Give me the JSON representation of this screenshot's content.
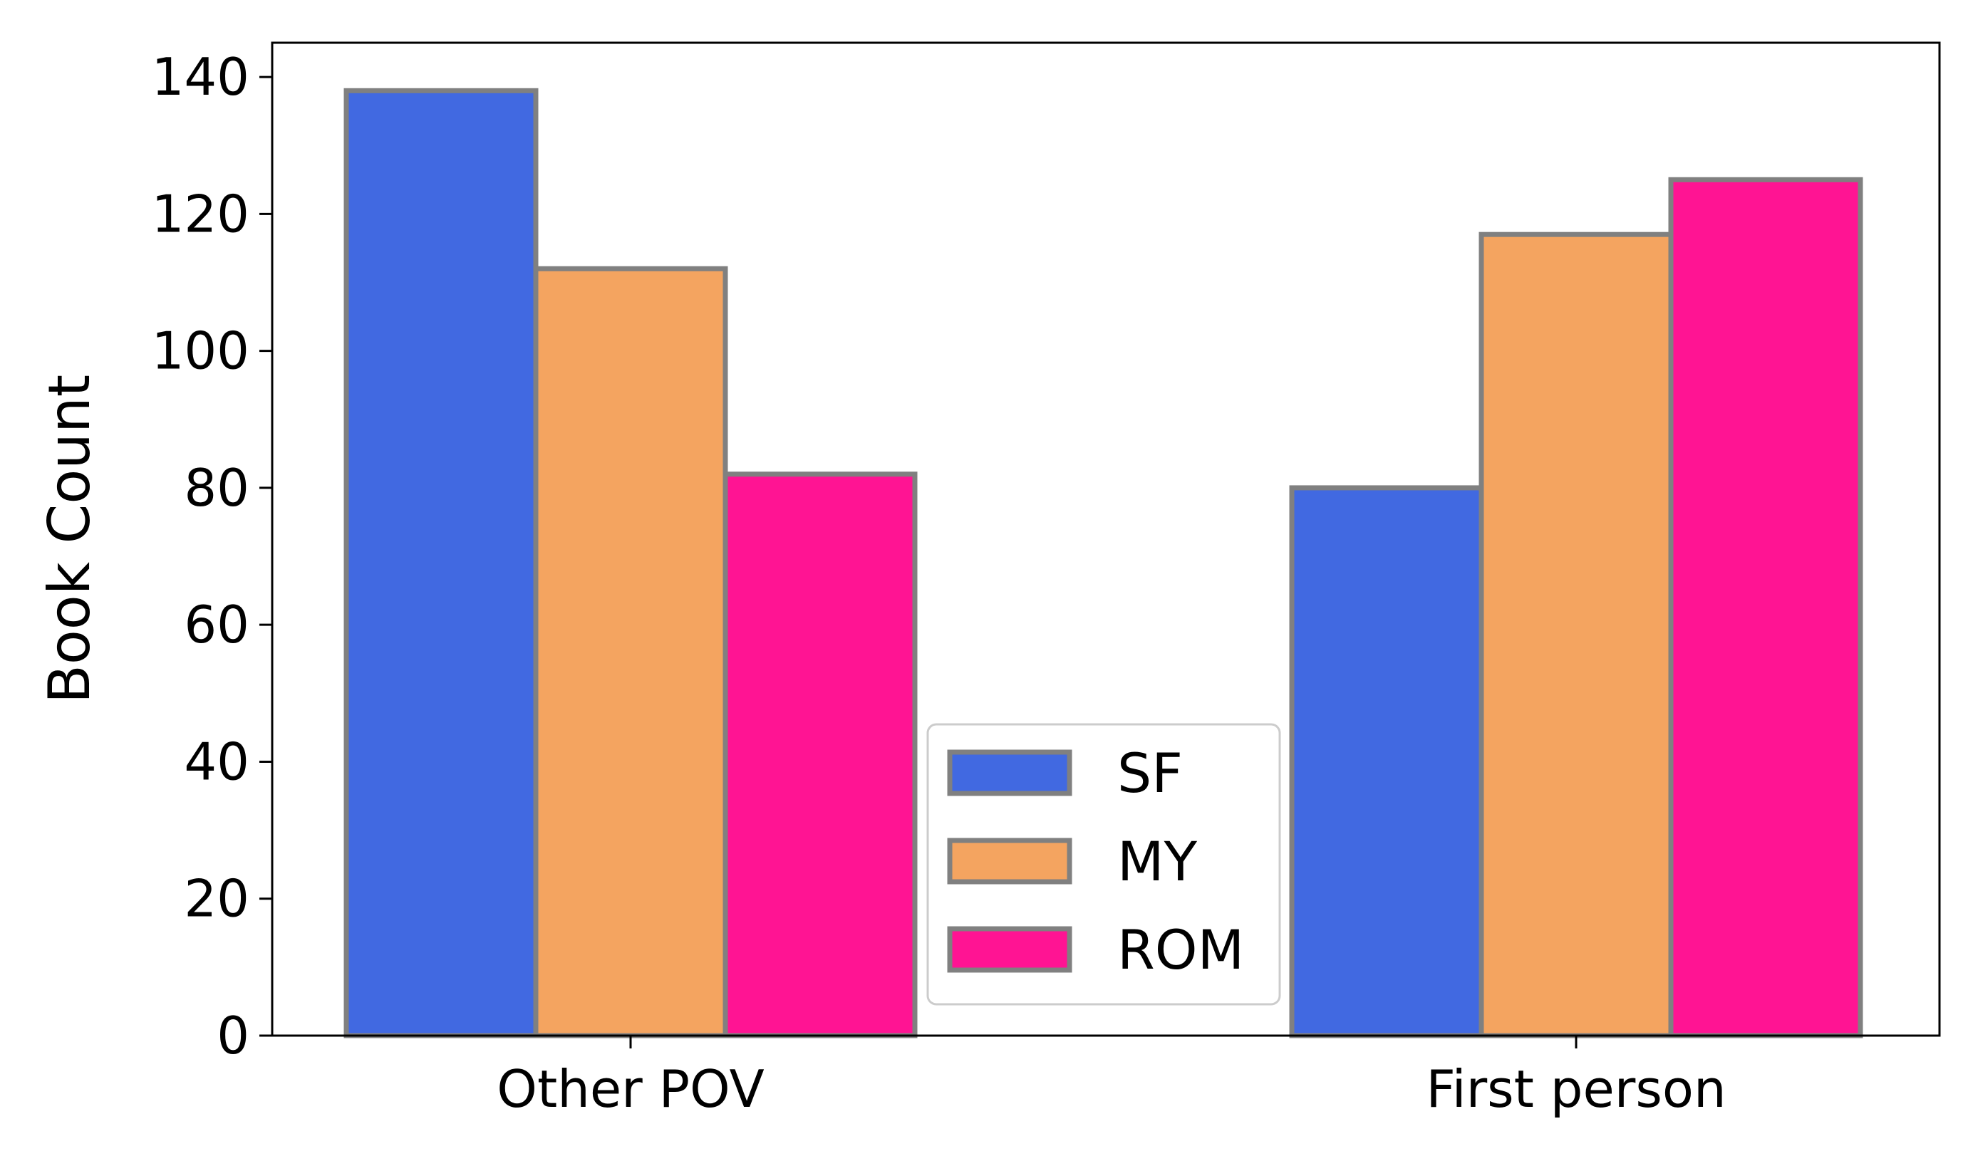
{
  "chart_data": {
    "type": "bar",
    "title": "",
    "xlabel": "",
    "ylabel": "Book Count",
    "ylim": [
      0,
      145
    ],
    "yticks": [
      0,
      20,
      40,
      60,
      80,
      100,
      120,
      140
    ],
    "grid": false,
    "categories": [
      "Other POV",
      "First person"
    ],
    "series": [
      {
        "name": "SF",
        "color": "#4169e1",
        "values": [
          138,
          80
        ]
      },
      {
        "name": "MY",
        "color": "#f4a460",
        "values": [
          112,
          117
        ]
      },
      {
        "name": "ROM",
        "color": "#ff1493",
        "values": [
          82,
          125
        ]
      }
    ],
    "bar_edge_color": "#808080",
    "legend_position": "lower-center"
  }
}
